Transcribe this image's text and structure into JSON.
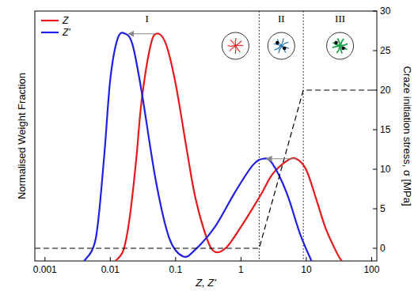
{
  "chart_data": {
    "type": "line",
    "x_label": "Z, Z'",
    "y_label": "Normalised Weight Fraction",
    "y2_label": "Craze initiation stress, σ [MPa]",
    "log": "x",
    "xlim": [
      0.0007,
      120
    ],
    "xticks": [
      0.001,
      0.01,
      0.1,
      1,
      10,
      100
    ],
    "ylim": [
      0,
      1.1
    ],
    "y2lim": [
      -1.6,
      30
    ],
    "y2ticks": [
      0,
      5,
      10,
      15,
      20,
      25,
      30
    ],
    "legend": "upper left",
    "series": [
      {
        "name": "Z",
        "color": "#e8191a",
        "x": [
          0.012,
          0.016,
          0.02,
          0.025,
          0.03,
          0.04,
          0.05,
          0.07,
          0.1,
          0.15,
          0.2,
          0.3,
          0.4,
          0.6,
          1,
          2,
          3,
          5,
          7,
          10,
          15,
          20,
          30,
          35
        ],
        "values": [
          0,
          0.05,
          0.2,
          0.45,
          0.7,
          0.93,
          1.0,
          0.96,
          0.78,
          0.48,
          0.28,
          0.1,
          0.04,
          0.06,
          0.15,
          0.29,
          0.38,
          0.44,
          0.45,
          0.4,
          0.25,
          0.14,
          0.03,
          0
        ]
      },
      {
        "name": "Z'",
        "color": "#1f1fe6",
        "x": [
          0.004,
          0.006,
          0.008,
          0.01,
          0.013,
          0.017,
          0.022,
          0.03,
          0.05,
          0.08,
          0.13,
          0.2,
          0.4,
          0.8,
          1.5,
          2.2,
          3,
          5,
          8,
          12
        ],
        "values": [
          0,
          0.1,
          0.45,
          0.8,
          0.98,
          1.0,
          0.95,
          0.75,
          0.35,
          0.1,
          0.02,
          0.05,
          0.15,
          0.3,
          0.42,
          0.45,
          0.43,
          0.3,
          0.12,
          0
        ]
      },
      {
        "axis": "y2",
        "color": "#000000",
        "line_style": "dashed",
        "x": [
          0.0007,
          1.9,
          9,
          120
        ],
        "values": [
          0,
          0,
          20,
          20
        ]
      }
    ],
    "regions": [
      {
        "label": "I",
        "from": 0.0007,
        "to": 1.9
      },
      {
        "label": "II",
        "from": 1.9,
        "to": 9
      },
      {
        "label": "III",
        "from": 9,
        "to": 120
      }
    ]
  }
}
